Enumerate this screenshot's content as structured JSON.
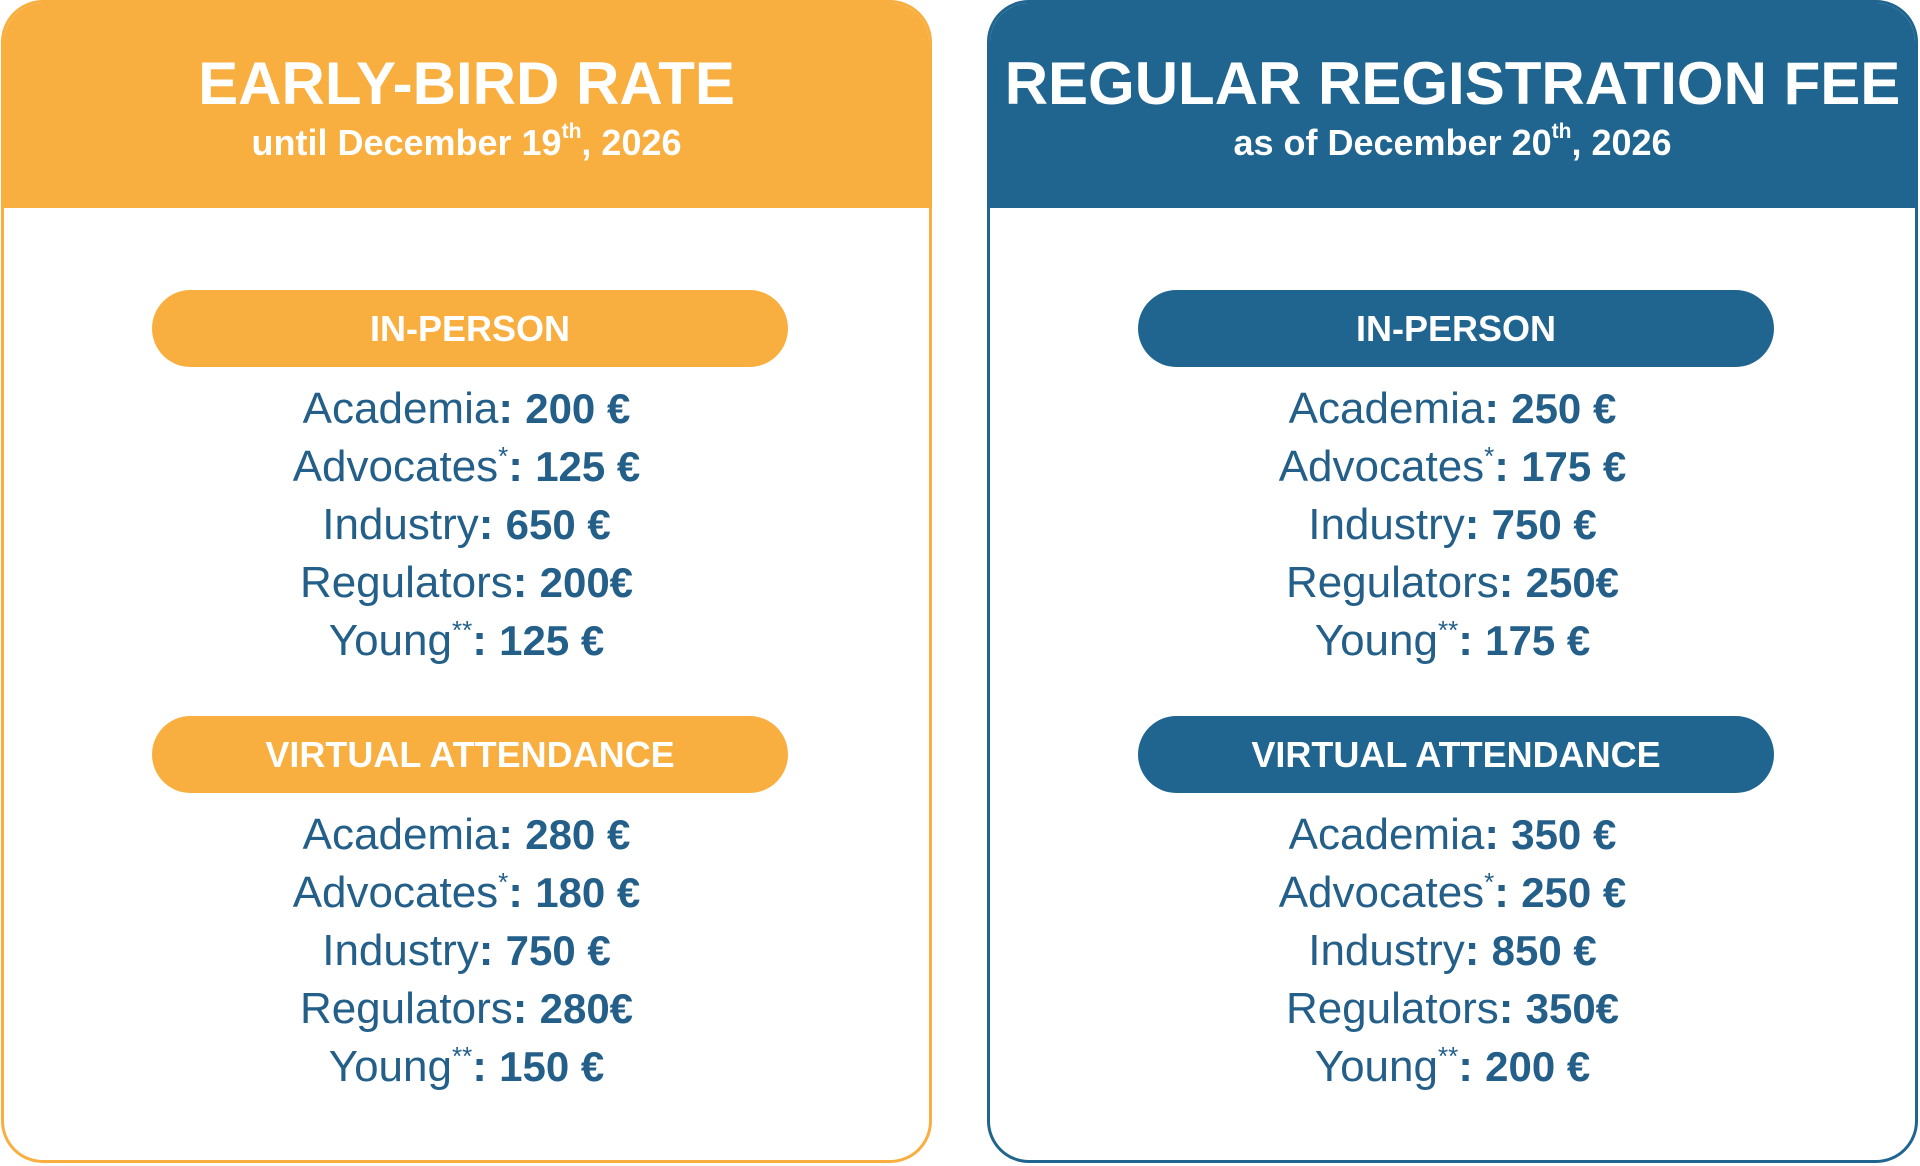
{
  "colors": {
    "early_accent": "#F9AF40",
    "regular_accent": "#1F6590",
    "price_text": "#235F89"
  },
  "cards": [
    {
      "title": "EARLY-BIRD RATE",
      "subtitle_pre": "until December 19",
      "subtitle_sup": "th",
      "subtitle_post": ", 2026",
      "sections": [
        {
          "label": "IN-PERSON",
          "rows": [
            {
              "category": "Academia",
              "mark": "",
              "price": "200 €"
            },
            {
              "category": "Advocates",
              "mark": "*",
              "price": "125 €"
            },
            {
              "category": "Industry",
              "mark": "",
              "price": "650 €"
            },
            {
              "category": "Regulators",
              "mark": "",
              "price": "200€"
            },
            {
              "category": "Young",
              "mark": "**",
              "price": "125 €"
            }
          ]
        },
        {
          "label": "VIRTUAL ATTENDANCE",
          "rows": [
            {
              "category": "Academia",
              "mark": "",
              "price": "280 €"
            },
            {
              "category": "Advocates",
              "mark": "*",
              "price": "180 €"
            },
            {
              "category": "Industry",
              "mark": "",
              "price": "750 €"
            },
            {
              "category": "Regulators",
              "mark": "",
              "price": "280€"
            },
            {
              "category": "Young",
              "mark": "**",
              "price": "150 €"
            }
          ]
        }
      ]
    },
    {
      "title": "REGULAR REGISTRATION FEE",
      "subtitle_pre": "as of December 20",
      "subtitle_sup": "th",
      "subtitle_post": ", 2026",
      "sections": [
        {
          "label": "IN-PERSON",
          "rows": [
            {
              "category": "Academia",
              "mark": "",
              "price": "250 €"
            },
            {
              "category": "Advocates",
              "mark": "*",
              "price": "175 €"
            },
            {
              "category": "Industry",
              "mark": "",
              "price": "750 €"
            },
            {
              "category": "Regulators",
              "mark": "",
              "price": "250€"
            },
            {
              "category": "Young",
              "mark": "**",
              "price": "175 €"
            }
          ]
        },
        {
          "label": "VIRTUAL ATTENDANCE",
          "rows": [
            {
              "category": "Academia",
              "mark": "",
              "price": "350 €"
            },
            {
              "category": "Advocates",
              "mark": "*",
              "price": "250 €"
            },
            {
              "category": "Industry",
              "mark": "",
              "price": "850 €"
            },
            {
              "category": "Regulators",
              "mark": "",
              "price": "350€"
            },
            {
              "category": "Young",
              "mark": "**",
              "price": "200 €"
            }
          ]
        }
      ]
    }
  ]
}
